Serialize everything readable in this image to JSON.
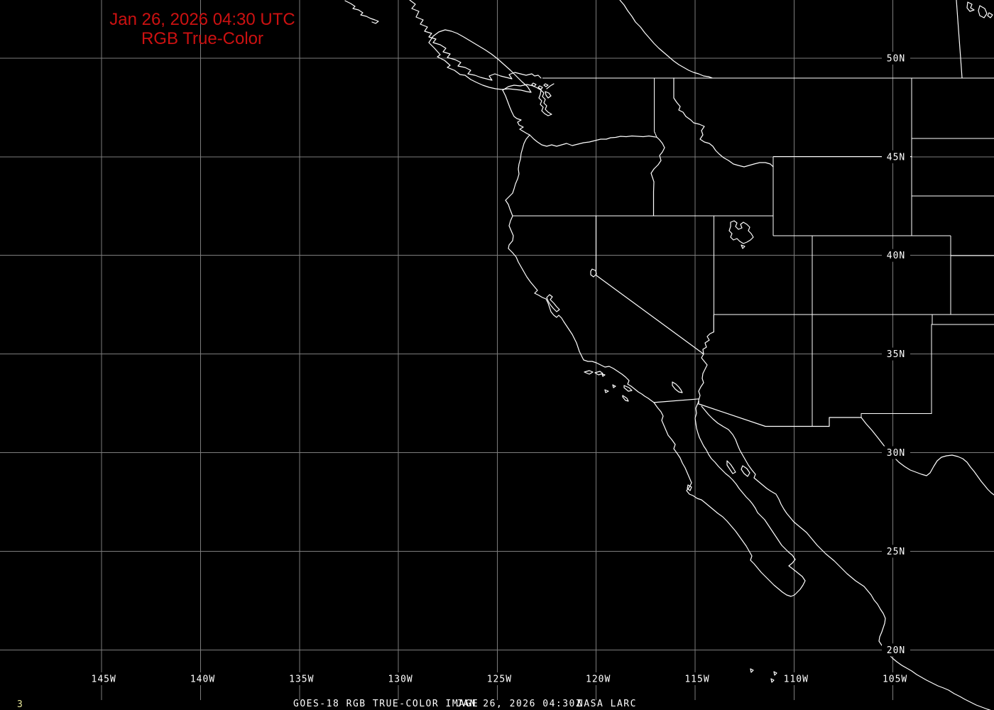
{
  "header": {
    "timestamp_line": "Jan 26, 2026 04:30 UTC",
    "product_line": "RGB True-Color",
    "text_color": "#cc1111"
  },
  "footer": {
    "left_text": "GOES-18 RGB TRUE-COLOR IMAGE",
    "center_text": "JAN 26, 2026 04:30Z",
    "right_text": "NASA LARC",
    "frame_number": "3",
    "frame_number_color": "#e8e89a",
    "text_color": "#ffffff"
  },
  "grid": {
    "lon_labels": [
      "145W",
      "140W",
      "135W",
      "130W",
      "125W",
      "120W",
      "115W",
      "110W",
      "105W"
    ],
    "lat_labels": [
      "50N",
      "45N",
      "40N",
      "35N",
      "30N",
      "25N",
      "20N"
    ],
    "grid_color": "#7d7d7d",
    "label_color": "#ffffff"
  },
  "map": {
    "outline_color": "#ffffff",
    "background_color": "#000000"
  }
}
